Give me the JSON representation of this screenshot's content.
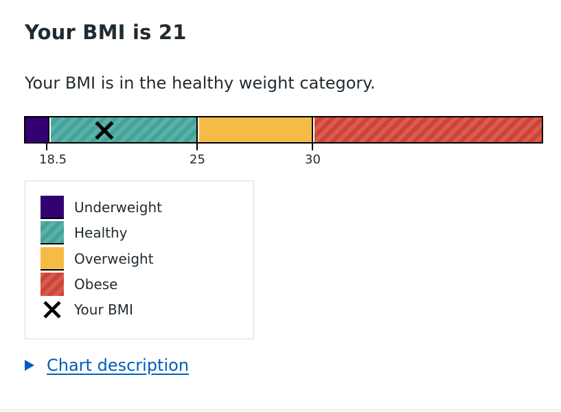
{
  "heading": "Your BMI is 21",
  "summary": "Your BMI is in the healthy weight category.",
  "bmi_value": 21,
  "scale": {
    "min": 16,
    "max": 40,
    "ticks": [
      "18.5",
      "25",
      "30"
    ]
  },
  "categories": [
    {
      "label": "Underweight",
      "color": "#330072"
    },
    {
      "label": "Healthy",
      "color": "#41a39a"
    },
    {
      "label": "Overweight",
      "color": "#f5bb47"
    },
    {
      "label": "Obese",
      "color": "#cf4234"
    }
  ],
  "legend": {
    "underweight": "Underweight",
    "healthy": "Healthy",
    "overweight": "Overweight",
    "obese": "Obese",
    "your_bmi": "Your BMI"
  },
  "icons": {
    "marker": "cross-icon",
    "disclosure": "triangle-right-icon"
  },
  "details": {
    "label": "Chart description"
  }
}
